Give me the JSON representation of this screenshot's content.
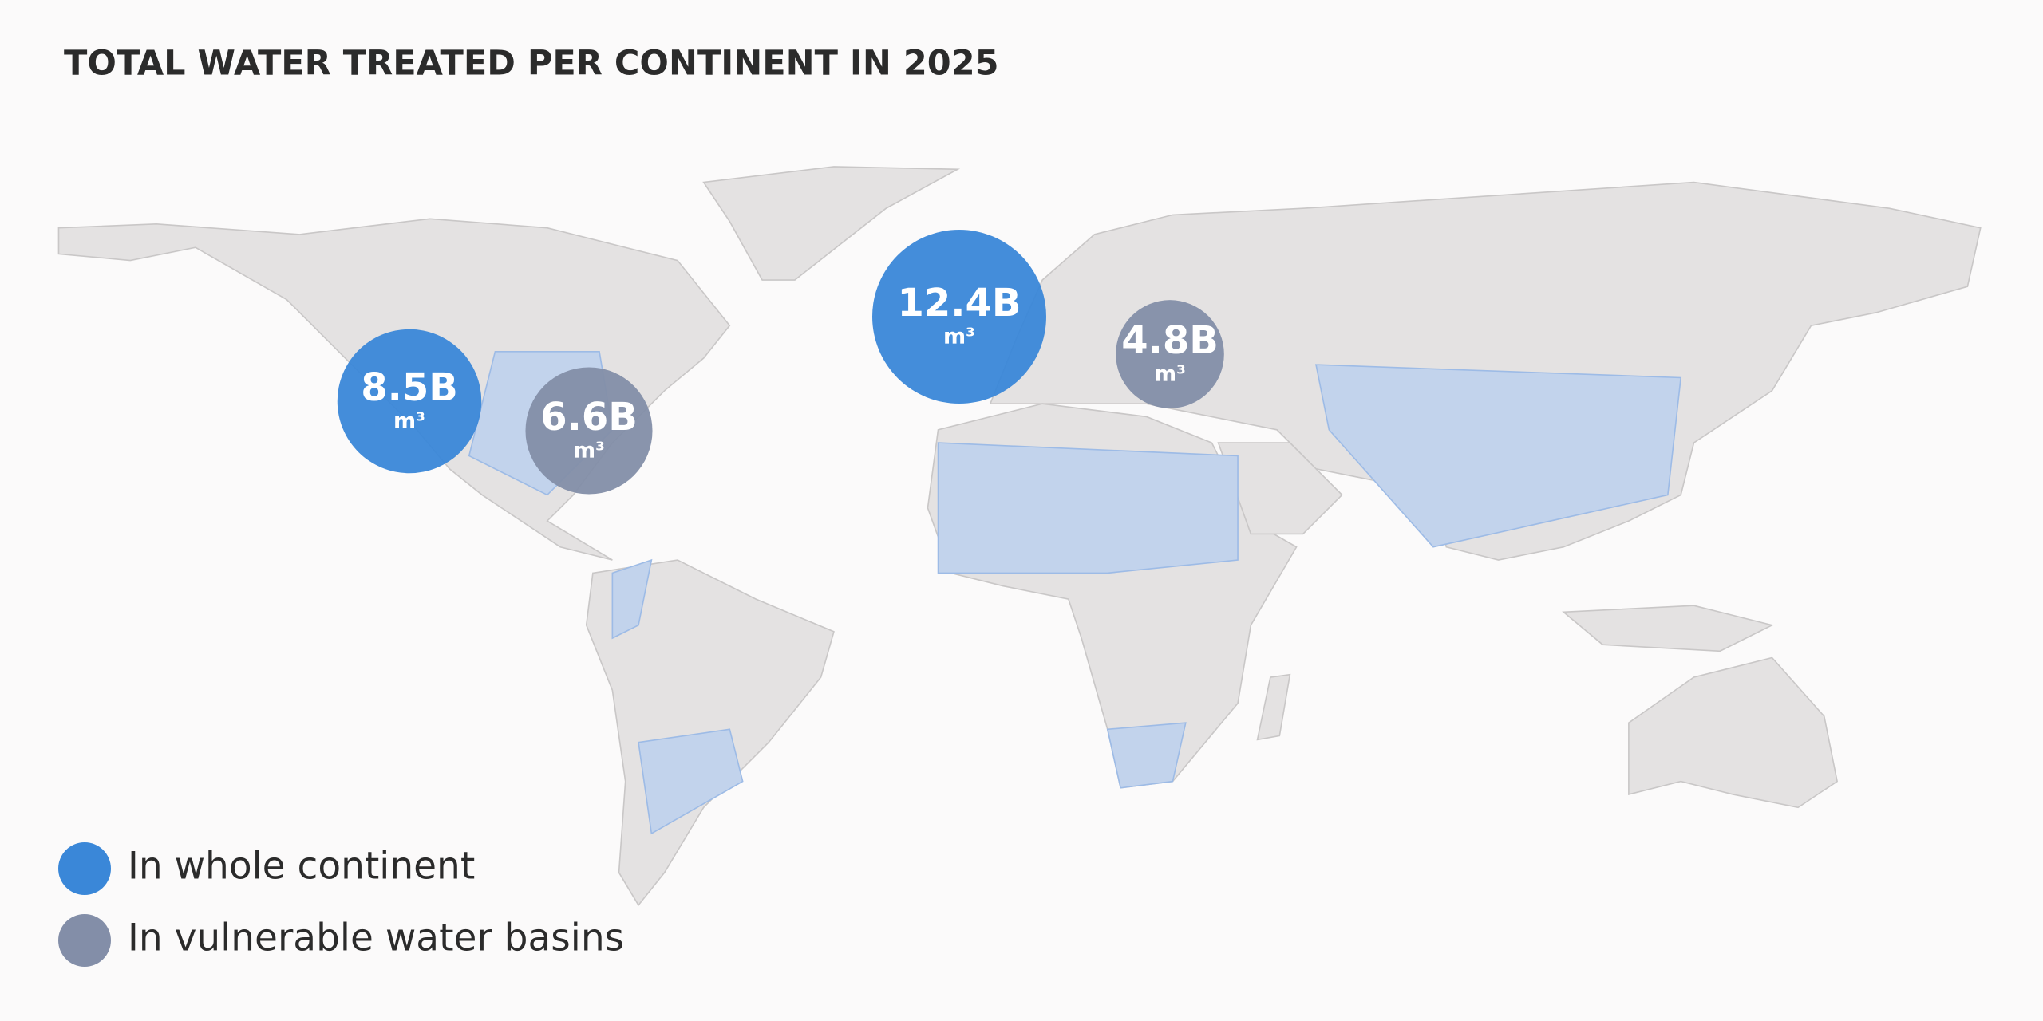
{
  "chart_data": {
    "type": "bubble",
    "title": "TOTAL WATER TREATED PER CONTINENT IN 2025",
    "unit": "m³",
    "series": [
      {
        "name": "In whole continent",
        "color": "#3a87d8",
        "values": [
          8500000000,
          12400000000
        ],
        "value_labels": [
          "8.5B",
          "12.4B"
        ]
      },
      {
        "name": "In vulnerable water basins",
        "color": "#838ea8",
        "values": [
          6600000000,
          4800000000
        ],
        "value_labels": [
          "6.6B",
          "4.8B"
        ]
      }
    ]
  }
}
